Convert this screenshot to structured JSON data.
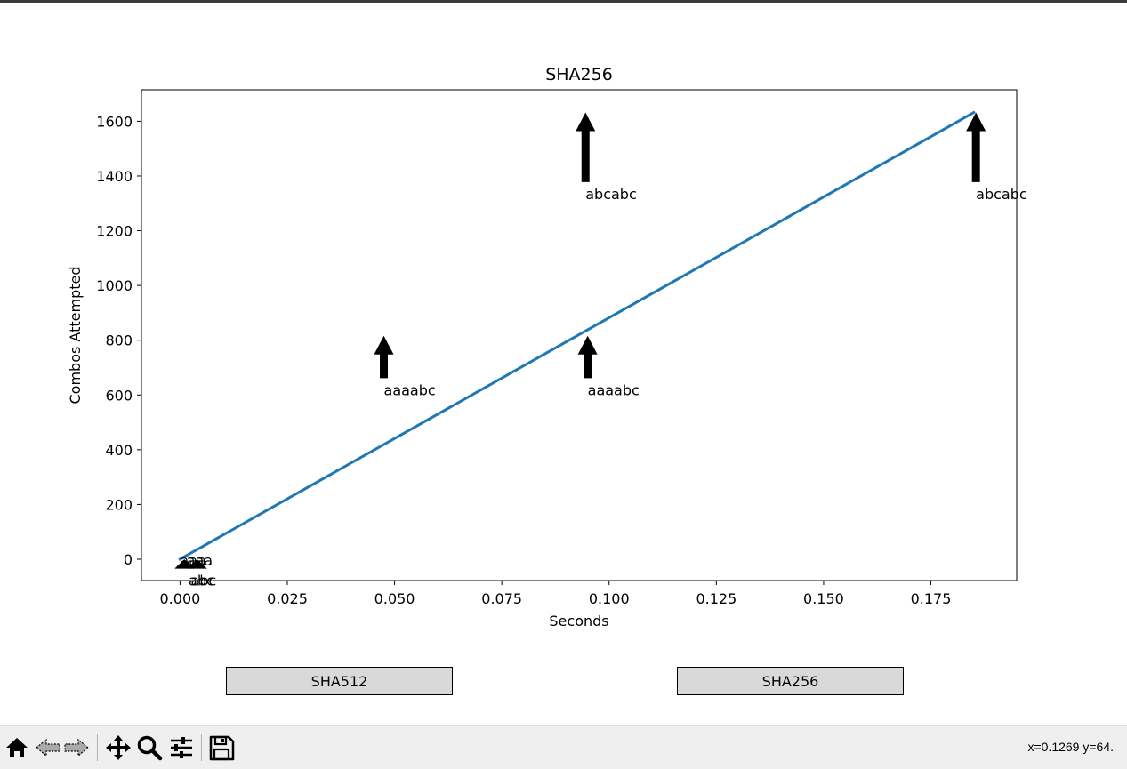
{
  "chart_data": {
    "type": "line",
    "title": "SHA256",
    "xlabel": "Seconds",
    "ylabel": "Combos Attempted",
    "xlim": [
      -0.009,
      0.195
    ],
    "ylim": [
      -78,
      1715
    ],
    "xticks": [
      0.0,
      0.025,
      0.05,
      0.075,
      0.1,
      0.125,
      0.15,
      0.175
    ],
    "xtick_labels": [
      "0.000",
      "0.025",
      "0.050",
      "0.075",
      "0.100",
      "0.125",
      "0.150",
      "0.175"
    ],
    "yticks": [
      0,
      200,
      400,
      600,
      800,
      1000,
      1200,
      1400,
      1600
    ],
    "ytick_labels": [
      "0",
      "200",
      "400",
      "600",
      "800",
      "1000",
      "1200",
      "1400",
      "1600"
    ],
    "grid": false,
    "series": [
      {
        "color": "#1f77b4",
        "x": [
          0.0,
          0.185
        ],
        "y": [
          0,
          1632
        ]
      }
    ],
    "annotations": [
      {
        "text": "abcabc",
        "point_x": 0.0945,
        "point_y": 1632,
        "text_x": 0.0945,
        "text_y": 1332
      },
      {
        "text": "abcabc",
        "point_x": 0.1855,
        "point_y": 1632,
        "text_x": 0.1855,
        "text_y": 1332
      },
      {
        "text": "aaaabc",
        "point_x": 0.0475,
        "point_y": 816,
        "text_x": 0.0475,
        "text_y": 616
      },
      {
        "text": "aaaabc",
        "point_x": 0.095,
        "point_y": 816,
        "text_x": 0.095,
        "text_y": 616
      },
      {
        "text": "aaa",
        "point_x": 0.0,
        "point_y": 0,
        "text_x": 0.0,
        "text_y": -6
      },
      {
        "text": "aaa",
        "point_x": 0.003,
        "point_y": 0,
        "text_x": 0.0015,
        "text_y": -6
      },
      {
        "text": "abc",
        "point_x": 0.001,
        "point_y": 0,
        "text_x": 0.002,
        "text_y": -80
      },
      {
        "text": "abc",
        "point_x": 0.004,
        "point_y": 0,
        "text_x": 0.0025,
        "text_y": -80
      }
    ]
  },
  "buttons": {
    "sha512": "SHA512",
    "sha256": "SHA256"
  },
  "toolbar": {
    "coordinates": "x=0.1269 y=64."
  }
}
